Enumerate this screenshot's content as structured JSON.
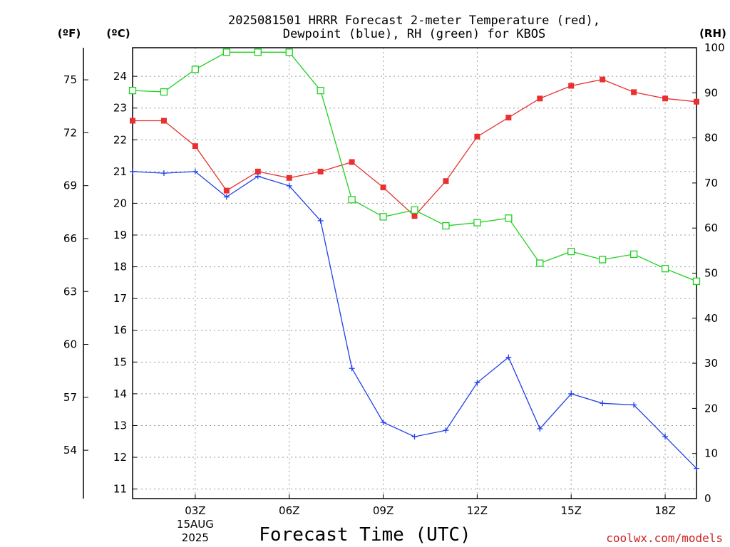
{
  "chart_data": {
    "type": "line",
    "title_line1": "2025081501 HRRR Forecast 2-meter Temperature (red),",
    "title_line2": "Dewpoint (blue), RH (green) for KBOS",
    "xlabel": "Forecast Time (UTC)",
    "credit": "coolwx.com/models",
    "unit_f": "(ºF)",
    "unit_c": "(ºC)",
    "unit_rh": "(RH)",
    "x_hours": [
      1,
      2,
      3,
      4,
      5,
      6,
      7,
      8,
      9,
      10,
      11,
      12,
      13,
      14,
      15,
      16,
      17,
      18,
      19
    ],
    "x_range": [
      1,
      19
    ],
    "x_ticks": [
      {
        "hour": 3,
        "label": "03Z",
        "sub1": "15AUG",
        "sub2": "2025"
      },
      {
        "hour": 6,
        "label": "06Z",
        "sub1": "",
        "sub2": ""
      },
      {
        "hour": 9,
        "label": "09Z",
        "sub1": "",
        "sub2": ""
      },
      {
        "hour": 12,
        "label": "12Z",
        "sub1": "",
        "sub2": ""
      },
      {
        "hour": 15,
        "label": "15Z",
        "sub1": "",
        "sub2": ""
      },
      {
        "hour": 18,
        "label": "18Z",
        "sub1": "",
        "sub2": ""
      }
    ],
    "celsius_range": [
      10.7,
      24.9
    ],
    "celsius_ticks": [
      "11",
      "12",
      "13",
      "14",
      "15",
      "16",
      "17",
      "18",
      "19",
      "20",
      "21",
      "22",
      "23",
      "24"
    ],
    "fahrenheit_ticks": [
      "54",
      "57",
      "60",
      "63",
      "66",
      "69",
      "72",
      "75"
    ],
    "rh_range": [
      0,
      100
    ],
    "rh_ticks": [
      "0",
      "10",
      "20",
      "30",
      "40",
      "50",
      "60",
      "70",
      "80",
      "90",
      "100"
    ],
    "grid": true,
    "colors": {
      "temperature": "#e83030",
      "dewpoint": "#2040e8",
      "rh": "#20d020"
    },
    "series": [
      {
        "key": "temperature",
        "axis": "celsius",
        "values": [
          22.6,
          22.6,
          21.8,
          20.4,
          21.0,
          20.8,
          21.0,
          21.3,
          20.5,
          19.6,
          20.7,
          22.1,
          22.7,
          23.3,
          23.7,
          23.9,
          23.5,
          23.3,
          23.2
        ]
      },
      {
        "key": "dewpoint",
        "axis": "celsius",
        "values": [
          21.0,
          20.95,
          21.0,
          20.2,
          20.85,
          20.55,
          19.45,
          14.8,
          13.1,
          12.65,
          12.85,
          14.35,
          15.15,
          12.9,
          14.0,
          13.7,
          13.65,
          12.65,
          11.65
        ]
      },
      {
        "key": "rh",
        "axis": "rh",
        "values": [
          90.5,
          90.2,
          95.2,
          99.0,
          99.0,
          99.0,
          90.5,
          66.3,
          62.5,
          64.0,
          60.5,
          61.2,
          62.2,
          52.2,
          54.8,
          53.0,
          54.2,
          51.0,
          48.2
        ]
      }
    ]
  }
}
